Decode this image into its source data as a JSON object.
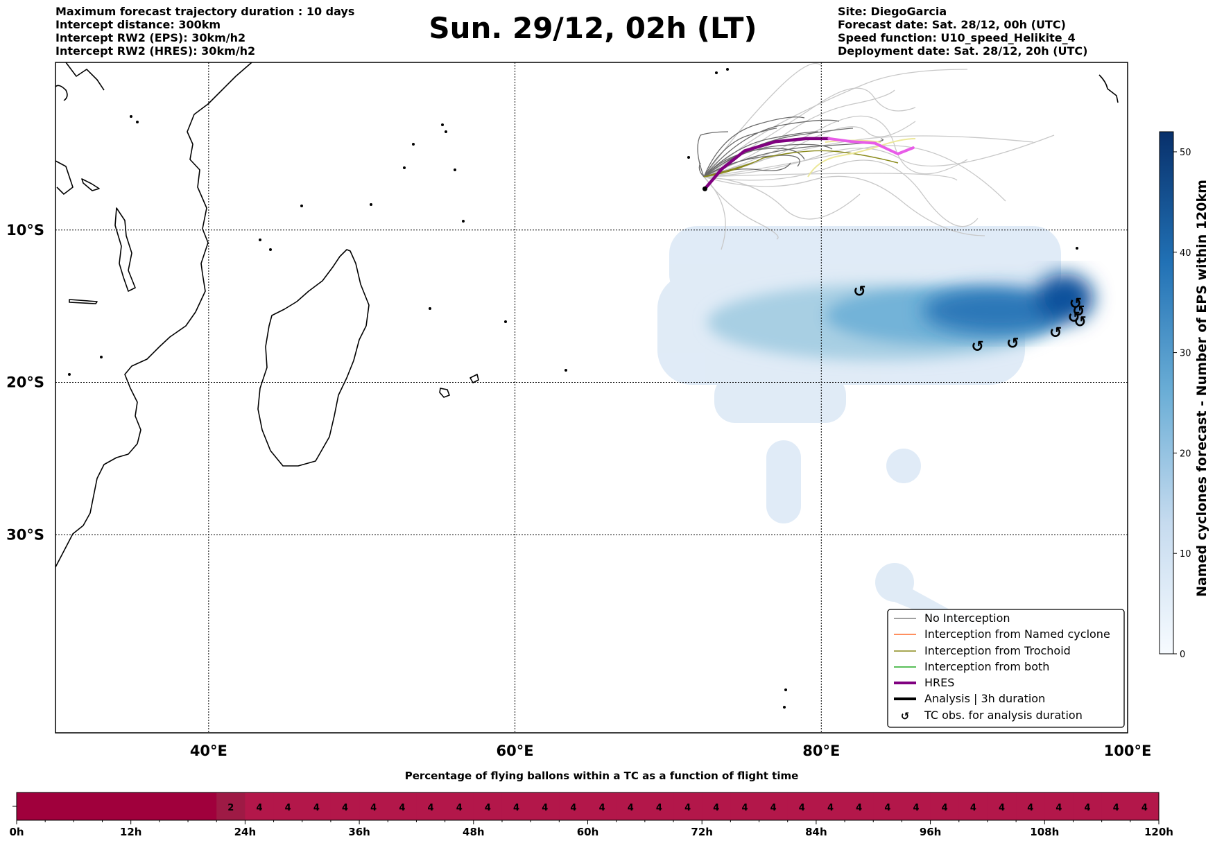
{
  "header": {
    "title": "Sun. 29/12, 02h (LT)",
    "left_lines": [
      "Maximum forecast trajectory duration : 10 days",
      "Intercept distance: 300km",
      "Intercept RW2 (EPS):  30km/h2",
      "Intercept RW2 (HRES): 30km/h2"
    ],
    "right_lines": [
      "Site: DiegoGarcia",
      "Forecast date: Sat. 28/12, 00h (UTC)",
      "Speed function: U10_speed_Helikite_4",
      "Deployment date: Sat. 28/12, 20h (UTC)"
    ]
  },
  "colors": {
    "no_interception": "#808080",
    "named_cyclone": "#ff6a2a",
    "trochoid": "#8a8a1a",
    "both": "#22aa22",
    "hres": "#800080",
    "analysis": "#000000",
    "bar_low": "#a0003c",
    "bar_high": "#b3174a"
  },
  "chart_data": [
    {
      "type": "map",
      "projection": "Plate Carree",
      "lon_range": [
        30,
        100
      ],
      "lat_range": [
        -43,
        1
      ],
      "x_ticks": [
        "40°E",
        "60°E",
        "80°E",
        "100°E"
      ],
      "y_ticks": [
        "10°S",
        "20°S",
        "30°S"
      ],
      "grid": true,
      "deployment_site": {
        "name": "DiegoGarcia",
        "lon": 72.4,
        "lat": -7.3
      },
      "hres_track": [
        [
          72.4,
          -7.3
        ],
        [
          73.5,
          -6.0
        ],
        [
          75.0,
          -4.8
        ],
        [
          77.0,
          -4.2
        ],
        [
          79.0,
          -4.0
        ],
        [
          80.5,
          -4.0
        ],
        [
          82.0,
          -4.2
        ],
        [
          83.5,
          -4.3
        ],
        [
          85.0,
          -5.0
        ],
        [
          86.0,
          -4.6
        ]
      ],
      "tc_observations": [
        [
          82.5,
          -14.0
        ],
        [
          90.2,
          -17.6
        ],
        [
          92.5,
          -17.4
        ],
        [
          95.3,
          -16.7
        ],
        [
          96.5,
          -15.7
        ],
        [
          96.6,
          -14.8
        ],
        [
          96.8,
          -15.3
        ],
        [
          96.9,
          -16.0
        ]
      ],
      "colorbar": {
        "label": "Named cyclones forecast - Number of EPS within 120km",
        "min": 0,
        "max": 52,
        "ticks": [
          0,
          10,
          20,
          30,
          40,
          50
        ]
      },
      "legend": {
        "position": "lower-right",
        "entries": [
          "No Interception",
          "Interception from Named cyclone",
          "Interception from Trochoid",
          "Interception from both",
          "HRES",
          "Analysis | 3h duration",
          "TC obs. for analysis duration"
        ]
      }
    },
    {
      "type": "heatmap",
      "title": "Percentage of flying ballons within a TC as a function of flight time",
      "x_unit": "hours",
      "x_range": [
        0,
        120
      ],
      "x_ticks": [
        "0h",
        "12h",
        "24h",
        "36h",
        "48h",
        "60h",
        "72h",
        "84h",
        "96h",
        "108h",
        "120h"
      ],
      "cells": [
        {
          "start": 0,
          "end": 21,
          "value": 0
        },
        {
          "start": 21,
          "end": 24,
          "value": 2
        },
        {
          "start": 24,
          "end": 27,
          "value": 4
        },
        {
          "start": 27,
          "end": 30,
          "value": 4
        },
        {
          "start": 30,
          "end": 33,
          "value": 4
        },
        {
          "start": 33,
          "end": 36,
          "value": 4
        },
        {
          "start": 36,
          "end": 39,
          "value": 4
        },
        {
          "start": 39,
          "end": 42,
          "value": 4
        },
        {
          "start": 42,
          "end": 45,
          "value": 4
        },
        {
          "start": 45,
          "end": 48,
          "value": 4
        },
        {
          "start": 48,
          "end": 51,
          "value": 4
        },
        {
          "start": 51,
          "end": 54,
          "value": 4
        },
        {
          "start": 54,
          "end": 57,
          "value": 4
        },
        {
          "start": 57,
          "end": 60,
          "value": 4
        },
        {
          "start": 60,
          "end": 63,
          "value": 4
        },
        {
          "start": 63,
          "end": 66,
          "value": 4
        },
        {
          "start": 66,
          "end": 69,
          "value": 4
        },
        {
          "start": 69,
          "end": 72,
          "value": 4
        },
        {
          "start": 72,
          "end": 75,
          "value": 4
        },
        {
          "start": 75,
          "end": 78,
          "value": 4
        },
        {
          "start": 78,
          "end": 81,
          "value": 4
        },
        {
          "start": 81,
          "end": 84,
          "value": 4
        },
        {
          "start": 84,
          "end": 87,
          "value": 4
        },
        {
          "start": 87,
          "end": 90,
          "value": 4
        },
        {
          "start": 90,
          "end": 93,
          "value": 4
        },
        {
          "start": 93,
          "end": 96,
          "value": 4
        },
        {
          "start": 96,
          "end": 99,
          "value": 4
        },
        {
          "start": 99,
          "end": 102,
          "value": 4
        },
        {
          "start": 102,
          "end": 105,
          "value": 4
        },
        {
          "start": 105,
          "end": 108,
          "value": 4
        },
        {
          "start": 108,
          "end": 111,
          "value": 4
        },
        {
          "start": 111,
          "end": 114,
          "value": 4
        },
        {
          "start": 114,
          "end": 117,
          "value": 4
        },
        {
          "start": 117,
          "end": 120,
          "value": 4
        }
      ]
    }
  ]
}
